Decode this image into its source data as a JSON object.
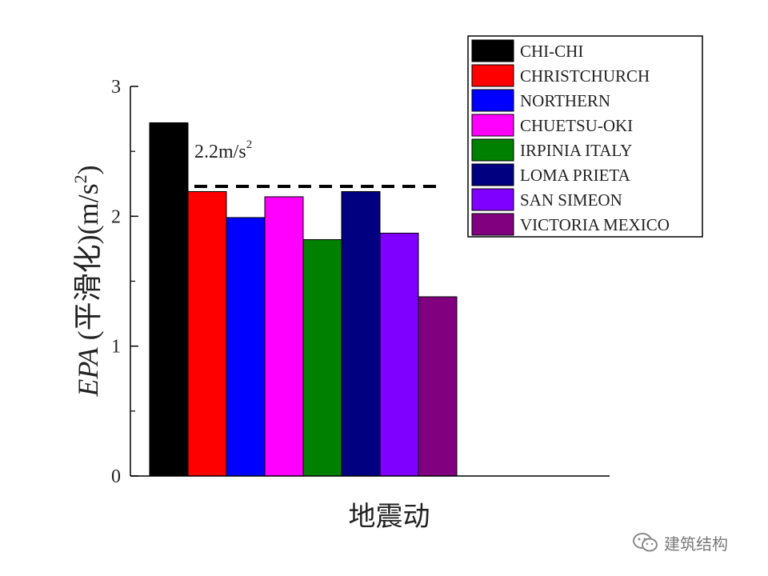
{
  "chart_data": {
    "type": "bar",
    "categories": [
      "CHI-CHI",
      "CHRISTCHURCH",
      "NORTHERN",
      "CHUETSU-OKI",
      "IRPINIA ITALY",
      "LOMA PRIETA",
      "SAN SIMEON",
      "VICTORIA MEXICO"
    ],
    "values": [
      2.72,
      2.19,
      1.99,
      2.15,
      1.82,
      2.19,
      1.87,
      1.38
    ],
    "colors": [
      "#000000",
      "#ff0000",
      "#0000ff",
      "#ff00ff",
      "#008000",
      "#000080",
      "#8000ff",
      "#800080"
    ],
    "xlabel": "地震动",
    "ylabel_italic": "EPA",
    "ylabel_rest": " (平滑化)(m/s",
    "ylabel_sup": "2",
    "ylabel_close": ")",
    "ylim": [
      0,
      3
    ],
    "yticks": [
      "0",
      "1",
      "2",
      "3"
    ],
    "yminor": true,
    "legend_position": "top-right",
    "reference_line": {
      "value": 2.23,
      "label": "2.2m/s",
      "label_sup": "2",
      "style": "dashed"
    }
  },
  "watermark": {
    "text": "建筑结构",
    "icon": "wechat-icon"
  }
}
